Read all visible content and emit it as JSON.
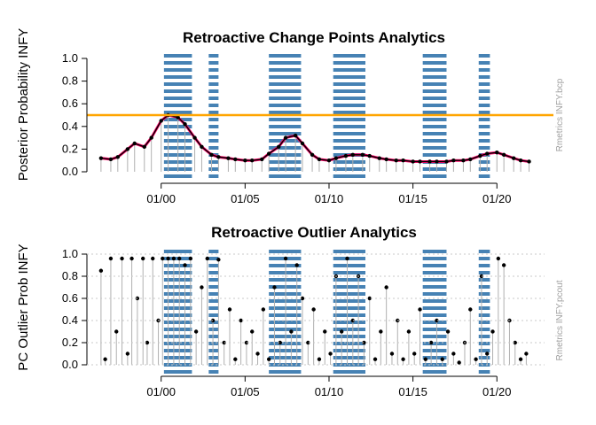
{
  "chart_data": [
    {
      "type": "line",
      "title": "Retroactive Change Points Analytics",
      "ylabel": "Posterior Probability INFY",
      "side_label": "Rmetrics INFY.bcp",
      "x_ticks": [
        "01/00",
        "01/05",
        "01/10",
        "01/15",
        "01/20"
      ],
      "y_ticks": [
        "0.0",
        "0.2",
        "0.4",
        "0.6",
        "0.8",
        "1.0"
      ],
      "ylim": [
        0,
        1
      ],
      "xlim": [
        "1996-01",
        "2022-06"
      ],
      "threshold": {
        "value": 0.5,
        "color": "#ffa500"
      },
      "shaded_periods": [
        {
          "start": "2000-03",
          "end": "2001-11"
        },
        {
          "start": "2002-11",
          "end": "2003-06"
        },
        {
          "start": "2006-06",
          "end": "2008-05"
        },
        {
          "start": "2010-04",
          "end": "2012-03"
        },
        {
          "start": "2015-08",
          "end": "2017-01"
        },
        {
          "start": "2018-12",
          "end": "2019-08"
        }
      ],
      "series": [
        {
          "color": "#000000",
          "x": [
            "1996-06",
            "1997-01",
            "1997-06",
            "1998-01",
            "1998-06",
            "1999-01",
            "1999-06",
            "2000-01",
            "2000-06",
            "2001-01",
            "2001-06",
            "2002-01",
            "2002-06",
            "2003-01",
            "2003-06",
            "2004-01",
            "2004-06",
            "2005-01",
            "2005-06",
            "2006-01",
            "2006-06",
            "2007-01",
            "2007-06",
            "2008-01",
            "2008-06",
            "2009-01",
            "2009-06",
            "2010-01",
            "2010-06",
            "2011-01",
            "2011-06",
            "2012-01",
            "2012-06",
            "2013-01",
            "2013-06",
            "2014-01",
            "2014-06",
            "2015-01",
            "2015-06",
            "2016-01",
            "2016-06",
            "2017-01",
            "2017-06",
            "2018-01",
            "2018-06",
            "2019-01",
            "2019-06",
            "2020-01",
            "2020-06",
            "2021-01",
            "2021-06",
            "2021-12"
          ],
          "values": [
            0.12,
            0.11,
            0.13,
            0.2,
            0.25,
            0.22,
            0.3,
            0.45,
            0.5,
            0.48,
            0.42,
            0.3,
            0.22,
            0.15,
            0.13,
            0.12,
            0.11,
            0.1,
            0.1,
            0.11,
            0.16,
            0.22,
            0.3,
            0.32,
            0.25,
            0.15,
            0.11,
            0.1,
            0.12,
            0.14,
            0.15,
            0.15,
            0.14,
            0.12,
            0.11,
            0.1,
            0.1,
            0.09,
            0.09,
            0.09,
            0.09,
            0.09,
            0.1,
            0.1,
            0.11,
            0.14,
            0.16,
            0.17,
            0.15,
            0.12,
            0.1,
            0.09
          ]
        }
      ]
    },
    {
      "type": "scatter",
      "title": "Retroactive Outlier Analytics",
      "ylabel": "PC Outlier Prob INFY",
      "side_label": "Rmetrics INFY.pcout",
      "x_ticks": [
        "01/00",
        "01/05",
        "01/10",
        "01/15",
        "01/20"
      ],
      "y_ticks": [
        "0.0",
        "0.2",
        "0.4",
        "0.6",
        "0.8",
        "1.0"
      ],
      "ylim": [
        0,
        1
      ],
      "xlim": [
        "1996-01",
        "2022-06"
      ],
      "shaded_periods": [
        {
          "start": "2000-03",
          "end": "2001-11"
        },
        {
          "start": "2002-11",
          "end": "2003-06"
        },
        {
          "start": "2006-06",
          "end": "2008-05"
        },
        {
          "start": "2010-04",
          "end": "2012-03"
        },
        {
          "start": "2015-08",
          "end": "2017-01"
        },
        {
          "start": "2018-12",
          "end": "2019-08"
        }
      ],
      "series": [
        {
          "color": "#000000",
          "x": [
            "1996-06",
            "1996-09",
            "1997-01",
            "1997-05",
            "1997-09",
            "1998-01",
            "1998-04",
            "1998-08",
            "1998-12",
            "1999-03",
            "1999-07",
            "1999-11",
            "2000-02",
            "2000-06",
            "2000-10",
            "2001-02",
            "2001-06",
            "2001-10",
            "2002-02",
            "2002-06",
            "2002-10",
            "2003-02",
            "2003-06",
            "2003-10",
            "2004-02",
            "2004-06",
            "2004-10",
            "2005-02",
            "2005-06",
            "2005-10",
            "2006-02",
            "2006-06",
            "2006-10",
            "2007-02",
            "2007-06",
            "2007-10",
            "2008-02",
            "2008-06",
            "2008-10",
            "2009-02",
            "2009-06",
            "2009-10",
            "2010-02",
            "2010-06",
            "2010-10",
            "2011-02",
            "2011-06",
            "2011-10",
            "2012-02",
            "2012-06",
            "2012-10",
            "2013-02",
            "2013-06",
            "2013-10",
            "2014-02",
            "2014-06",
            "2014-10",
            "2015-02",
            "2015-06",
            "2015-10",
            "2016-02",
            "2016-06",
            "2016-10",
            "2017-02",
            "2017-06",
            "2017-10",
            "2018-02",
            "2018-06",
            "2018-10",
            "2019-02",
            "2019-06",
            "2019-10",
            "2020-02",
            "2020-06",
            "2020-10",
            "2021-02",
            "2021-06",
            "2021-10"
          ],
          "values": [
            0.85,
            0.05,
            0.96,
            0.3,
            0.96,
            0.1,
            0.96,
            0.6,
            0.96,
            0.2,
            0.96,
            0.4,
            0.96,
            0.96,
            0.96,
            0.96,
            0.9,
            0.96,
            0.3,
            0.7,
            0.96,
            0.4,
            0.95,
            0.2,
            0.5,
            0.05,
            0.4,
            0.2,
            0.3,
            0.1,
            0.5,
            0.05,
            0.7,
            0.2,
            0.96,
            0.3,
            0.9,
            0.6,
            0.2,
            0.5,
            0.05,
            0.3,
            0.1,
            0.8,
            0.3,
            0.96,
            0.4,
            0.8,
            0.2,
            0.6,
            0.05,
            0.3,
            0.7,
            0.1,
            0.4,
            0.05,
            0.3,
            0.1,
            0.5,
            0.05,
            0.2,
            0.4,
            0.05,
            0.3,
            0.1,
            0.02,
            0.2,
            0.5,
            0.05,
            0.8,
            0.1,
            0.3,
            0.96,
            0.9,
            0.4,
            0.2,
            0.05,
            0.1
          ]
        }
      ]
    }
  ]
}
